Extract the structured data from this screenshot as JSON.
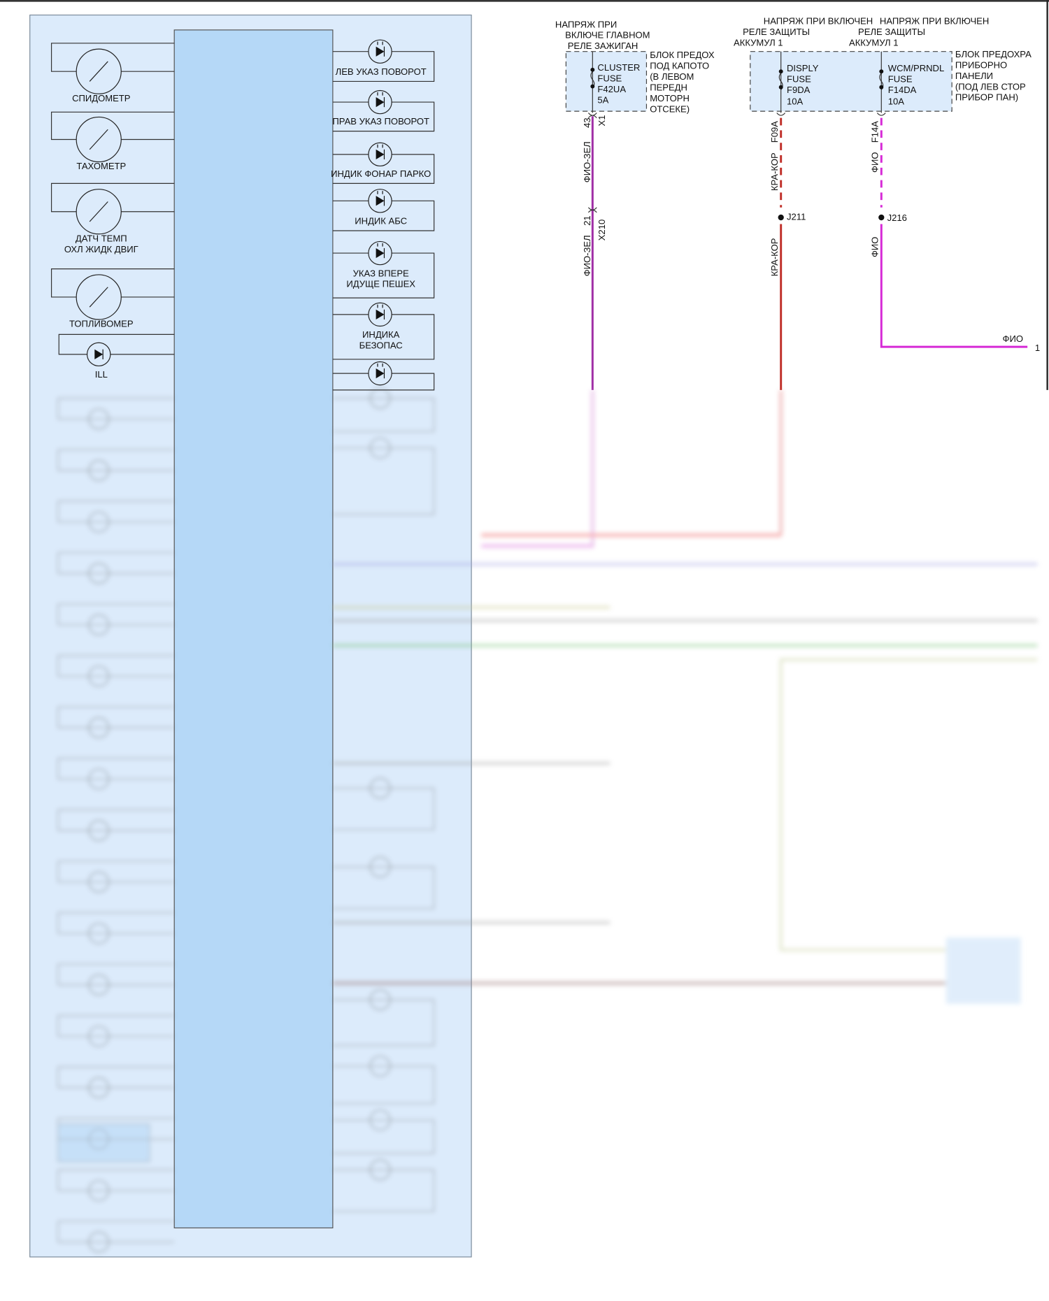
{
  "colors": {
    "panel": "#dcebfb",
    "module": "#b5d8f7",
    "wire_violet_green": "#a02ea6",
    "wire_red_brown": "#c0302a",
    "wire_violet": "#d62ad6"
  },
  "gauges": [
    {
      "label": [
        "СПИДОМЕТР"
      ],
      "icon": "gauge-icon"
    },
    {
      "label": [
        "ТАХОМЕТР"
      ],
      "icon": "gauge-icon"
    },
    {
      "label": [
        "ДАТЧ ТЕМП",
        "ОХЛ ЖИДК ДВИГ"
      ],
      "icon": "gauge-icon"
    },
    {
      "label": [
        "ТОПЛИВОМЕР"
      ],
      "icon": "gauge-icon"
    }
  ],
  "ill": {
    "label": "ILL",
    "icon": "led-icon"
  },
  "indicators": [
    {
      "label": [
        "ЛЕВ УКАЗ ПОВОРОТ"
      ]
    },
    {
      "label": [
        "ПРАВ УКАЗ ПОВОРОТ"
      ]
    },
    {
      "label": [
        "ИНДИК ФОНАР ПАРКО"
      ]
    },
    {
      "label": [
        "ИНДИК АБС"
      ]
    },
    {
      "label": [
        "УКАЗ ВПЕРЕ",
        "ИДУЩЕ ПЕШЕХ"
      ]
    },
    {
      "label": [
        "ИНДИКА",
        "БЕЗОПАС"
      ]
    }
  ],
  "fuse_block_1": {
    "power_label": [
      "НАПРЯЖ ПРИ",
      "ВКЛЮЧЕ ГЛАВНОМ",
      "РЕЛЕ ЗАЖИГАН"
    ],
    "block_label": [
      "БЛОК ПРЕДОХ",
      "ПОД КАПОТО",
      "(В ЛЕВОМ",
      "ПЕРЕДН",
      "МОТОРН",
      "ОТСЕКЕ)"
    ],
    "fuse": [
      "CLUSTER",
      "FUSE",
      "F42UA",
      "5A"
    ]
  },
  "fuse_block_2": {
    "power_label_1": [
      "НАПРЯЖ ПРИ ВКЛЮЧЕН",
      "РЕЛЕ ЗАЩИТЫ",
      "АККУМУЛ 1"
    ],
    "power_label_2": [
      "НАПРЯЖ ПРИ ВКЛЮЧЕН",
      "РЕЛЕ ЗАЩИТЫ",
      "АККУМУЛ 1"
    ],
    "block_label": [
      "БЛОК ПРЕДОХРА",
      "ПРИБОРНО",
      "ПАНЕЛИ",
      "(ПОД ЛЕВ СТОР",
      "ПРИБОР ПАН)"
    ],
    "fuse_1": [
      "DISPLY",
      "FUSE",
      "F9DA",
      "10A"
    ],
    "fuse_2": [
      "WCM/PRNDL",
      "FUSE",
      "F14DA",
      "10A"
    ]
  },
  "wires": {
    "w1": {
      "pin_top": "43",
      "conn_top": "X1",
      "color_top": "ФИО-ЗЕЛ",
      "pin_mid": "21",
      "conn_mid": "X210",
      "color_bottom": "ФИО-ЗЕЛ"
    },
    "w2": {
      "circuit": "F09A",
      "color_top": "КРА-КОР",
      "splice": "J211",
      "color_bottom": "КРА-КОР"
    },
    "w3": {
      "circuit": "F14A",
      "color_top": "ФИО",
      "splice": "J216",
      "color_bottom": "ФИО",
      "color_right": "ФИО",
      "pin_right": "1"
    }
  }
}
